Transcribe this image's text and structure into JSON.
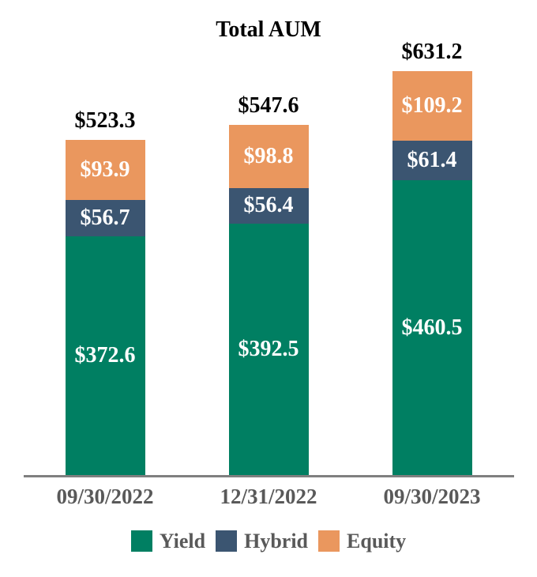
{
  "chart_data": {
    "type": "bar",
    "stacked": true,
    "title": "Total AUM",
    "categories": [
      "09/30/2022",
      "12/31/2022",
      "09/30/2023"
    ],
    "series": [
      {
        "name": "Yield",
        "color": "#007F62",
        "values": [
          372.6,
          392.5,
          460.5
        ]
      },
      {
        "name": "Hybrid",
        "color": "#3B5571",
        "values": [
          56.7,
          56.4,
          61.4
        ]
      },
      {
        "name": "Equity",
        "color": "#EA975E",
        "values": [
          93.9,
          98.8,
          109.2
        ]
      }
    ],
    "totals": [
      523.3,
      547.6,
      631.2
    ],
    "value_prefix": "$",
    "value_decimals": 1,
    "xlabel": "",
    "ylabel": "",
    "ylim": [
      0,
      631.2
    ],
    "grid": false,
    "legend_position": "bottom",
    "styles": {
      "background": "#FFFFFF",
      "title_color": "#000000",
      "total_label_color": "#000000",
      "segment_label_color": "#FFFFFF",
      "axis_line_color": "#7F7F7F",
      "tick_label_color": "#595959",
      "legend_label_color": "#595959"
    }
  }
}
